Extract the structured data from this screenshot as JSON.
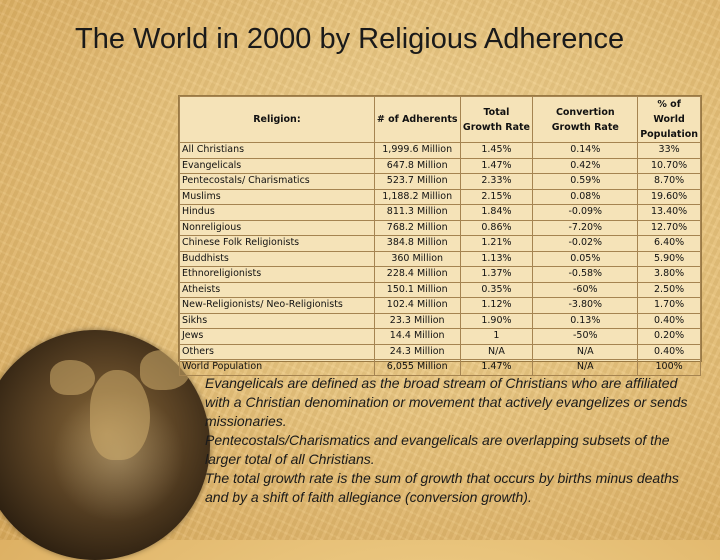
{
  "slide": {
    "title": "The World in 2000 by Religious Adherence"
  },
  "table": {
    "headers": {
      "religion": "Religion:",
      "adherents": "# of Adherents",
      "total_growth": "Total Growth Rate",
      "conversion_growth": "Convertion Growth Rate",
      "world_pct": "% of World Population"
    },
    "rows": [
      [
        "All Christians",
        "1,999.6 Million",
        "1.45%",
        "0.14%",
        "33%"
      ],
      [
        "Evangelicals",
        "647.8 Million",
        "1.47%",
        "0.42%",
        "10.70%"
      ],
      [
        "Pentecostals/ Charismatics",
        "523.7 Million",
        "2.33%",
        "0.59%",
        "8.70%"
      ],
      [
        "Muslims",
        "1,188.2 Million",
        "2.15%",
        "0.08%",
        "19.60%"
      ],
      [
        "Hindus",
        "811.3 Million",
        "1.84%",
        "-0.09%",
        "13.40%"
      ],
      [
        "Nonreligious",
        "768.2 Million",
        "0.86%",
        "-7.20%",
        "12.70%"
      ],
      [
        "Chinese Folk Religionists",
        "384.8 Million",
        "1.21%",
        "-0.02%",
        "6.40%"
      ],
      [
        "Buddhists",
        "360 Million",
        "1.13%",
        "0.05%",
        "5.90%"
      ],
      [
        "Ethnoreligionists",
        "228.4 Million",
        "1.37%",
        "-0.58%",
        "3.80%"
      ],
      [
        "Atheists",
        "150.1 Million",
        "0.35%",
        "-60%",
        "2.50%"
      ],
      [
        "New-Religionists/ Neo-Religionists",
        "102.4 Million",
        "1.12%",
        "-3.80%",
        "1.70%"
      ],
      [
        "Sikhs",
        "23.3 Million",
        "1.90%",
        "0.13%",
        "0.40%"
      ],
      [
        "Jews",
        "14.4 Million",
        "1",
        "-50%",
        "0.20%"
      ],
      [
        "Others",
        "24.3 Million",
        "N/A",
        "N/A",
        "0.40%"
      ],
      [
        "World Population",
        "6,055 Million",
        "1.47%",
        "N/A",
        "100%"
      ]
    ]
  },
  "notes": [
    "Evangelicals are defined as the broad stream of Christians who are affiliated with a Christian denomination or movement that actively evangelizes or sends missionaries.",
    "Pentecostals/Charismatics and evangelicals are overlapping subsets of the larger total of all Christians.",
    "The total growth rate is the sum of growth that occurs by births minus deaths and by a shift of faith allegiance (conversion growth)."
  ],
  "icons": [
    "globe-image"
  ]
}
